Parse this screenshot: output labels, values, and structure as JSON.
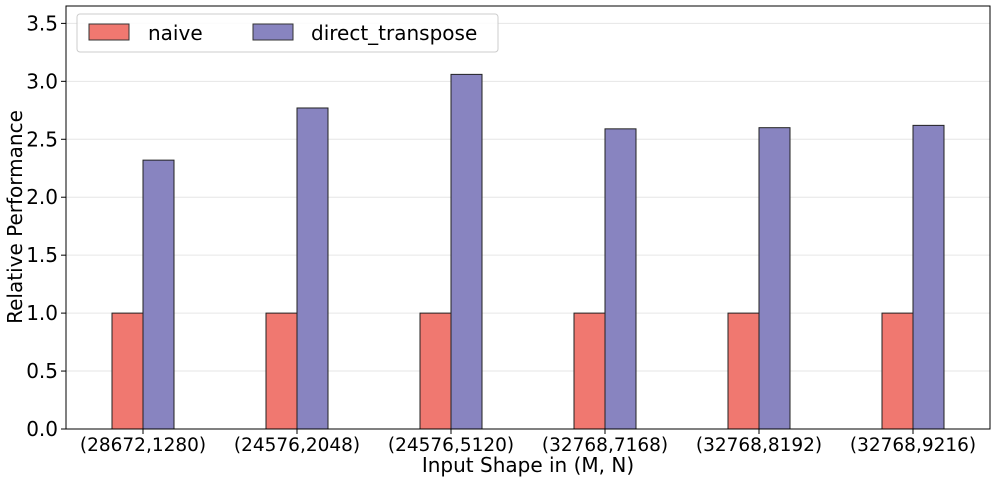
{
  "chart_data": {
    "type": "bar",
    "categories": [
      "(28672,1280)",
      "(24576,2048)",
      "(24576,5120)",
      "(32768,7168)",
      "(32768,8192)",
      "(32768,9216)"
    ],
    "series": [
      {
        "name": "naive",
        "values": [
          1.0,
          1.0,
          1.0,
          1.0,
          1.0,
          1.0
        ],
        "color": "#f07870"
      },
      {
        "name": "direct_transpose",
        "values": [
          2.32,
          2.77,
          3.06,
          2.59,
          2.6,
          2.62
        ],
        "color": "#8884c0"
      }
    ],
    "xlabel": "Input Shape in (M, N)",
    "ylabel": "Relative Performance",
    "ylim": [
      0,
      3.65
    ],
    "yticks": [
      "0.0",
      "0.5",
      "1.0",
      "1.5",
      "2.0",
      "2.5",
      "3.0",
      "3.5"
    ],
    "grid": true,
    "legend_position": "top-left"
  }
}
